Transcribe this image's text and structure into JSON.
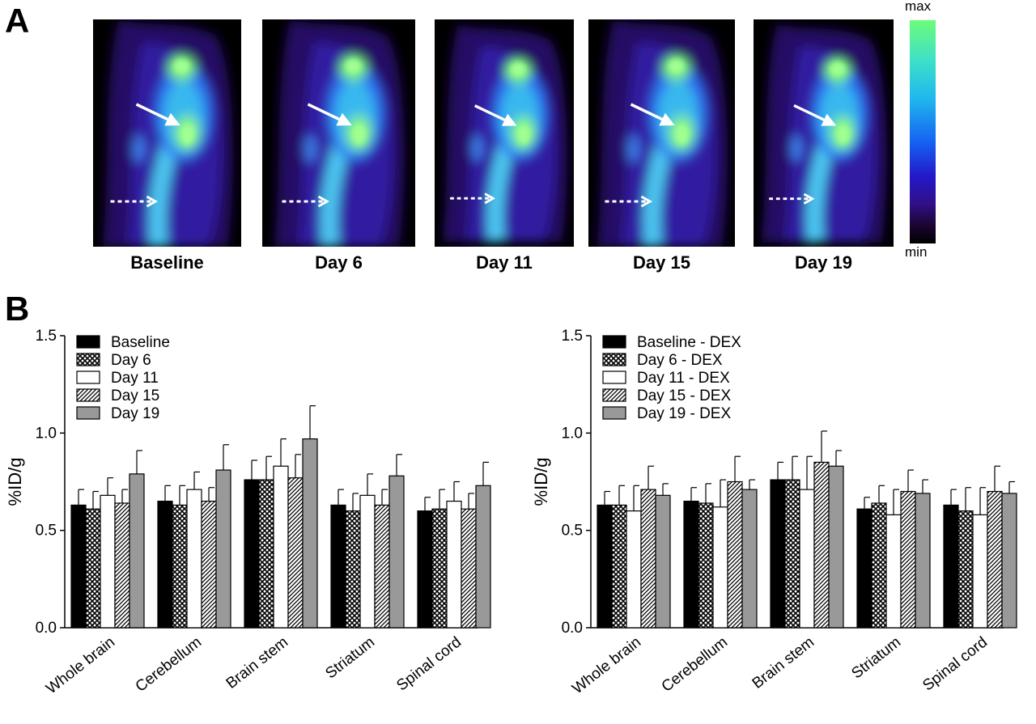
{
  "panels": {
    "a": "A",
    "b": "B"
  },
  "images": [
    {
      "label": "Baseline"
    },
    {
      "label": "Day 6"
    },
    {
      "label": "Day 11"
    },
    {
      "label": "Day 15"
    },
    {
      "label": "Day 19"
    }
  ],
  "colorbar": {
    "max": "max",
    "min": "min"
  },
  "chart_data": [
    {
      "type": "bar",
      "categories": [
        "Whole brain",
        "Cerebellum",
        "Brain stem",
        "Striatum",
        "Spinal cord"
      ],
      "ylabel": "%ID/g",
      "ylim": [
        0,
        1.5
      ],
      "yticks": [
        "0.0",
        "0.5",
        "1.0",
        "1.5"
      ],
      "legend_position": "top-left",
      "series": [
        {
          "name": "Baseline",
          "pattern": "solid-black",
          "values": [
            0.63,
            0.65,
            0.76,
            0.63,
            0.6
          ],
          "errors": [
            0.08,
            0.08,
            0.1,
            0.08,
            0.07
          ]
        },
        {
          "name": "Day 6",
          "pattern": "crosshatch",
          "values": [
            0.61,
            0.63,
            0.76,
            0.6,
            0.61
          ],
          "errors": [
            0.09,
            0.1,
            0.12,
            0.09,
            0.1
          ]
        },
        {
          "name": "Day 11",
          "pattern": "white",
          "values": [
            0.68,
            0.71,
            0.83,
            0.68,
            0.65
          ],
          "errors": [
            0.09,
            0.09,
            0.14,
            0.11,
            0.1
          ]
        },
        {
          "name": "Day 15",
          "pattern": "diagonal",
          "values": [
            0.64,
            0.65,
            0.77,
            0.63,
            0.61
          ],
          "errors": [
            0.07,
            0.07,
            0.12,
            0.08,
            0.08
          ]
        },
        {
          "name": "Day 19",
          "pattern": "solid-gray",
          "values": [
            0.79,
            0.81,
            0.97,
            0.78,
            0.73
          ],
          "errors": [
            0.12,
            0.13,
            0.17,
            0.11,
            0.12
          ]
        }
      ]
    },
    {
      "type": "bar",
      "categories": [
        "Whole brain",
        "Cerebellum",
        "Brain stem",
        "Striatum",
        "Spinal cord"
      ],
      "ylabel": "%ID/g",
      "ylim": [
        0,
        1.5
      ],
      "yticks": [
        "0.0",
        "0.5",
        "1.0",
        "1.5"
      ],
      "legend_position": "top-left",
      "series": [
        {
          "name": "Baseline - DEX",
          "pattern": "solid-black",
          "values": [
            0.63,
            0.65,
            0.76,
            0.61,
            0.63
          ],
          "errors": [
            0.07,
            0.07,
            0.09,
            0.06,
            0.08
          ]
        },
        {
          "name": "Day 6 - DEX",
          "pattern": "crosshatch",
          "values": [
            0.63,
            0.64,
            0.76,
            0.64,
            0.6
          ],
          "errors": [
            0.1,
            0.1,
            0.12,
            0.09,
            0.12
          ]
        },
        {
          "name": "Day 11 - DEX",
          "pattern": "white",
          "values": [
            0.6,
            0.62,
            0.71,
            0.58,
            0.58
          ],
          "errors": [
            0.13,
            0.14,
            0.17,
            0.13,
            0.14
          ]
        },
        {
          "name": "Day 15 - DEX",
          "pattern": "diagonal",
          "values": [
            0.71,
            0.75,
            0.85,
            0.7,
            0.7
          ],
          "errors": [
            0.12,
            0.13,
            0.16,
            0.11,
            0.13
          ]
        },
        {
          "name": "Day 19 - DEX",
          "pattern": "solid-gray",
          "values": [
            0.68,
            0.71,
            0.83,
            0.69,
            0.69
          ],
          "errors": [
            0.06,
            0.05,
            0.08,
            0.07,
            0.06
          ]
        }
      ]
    }
  ]
}
